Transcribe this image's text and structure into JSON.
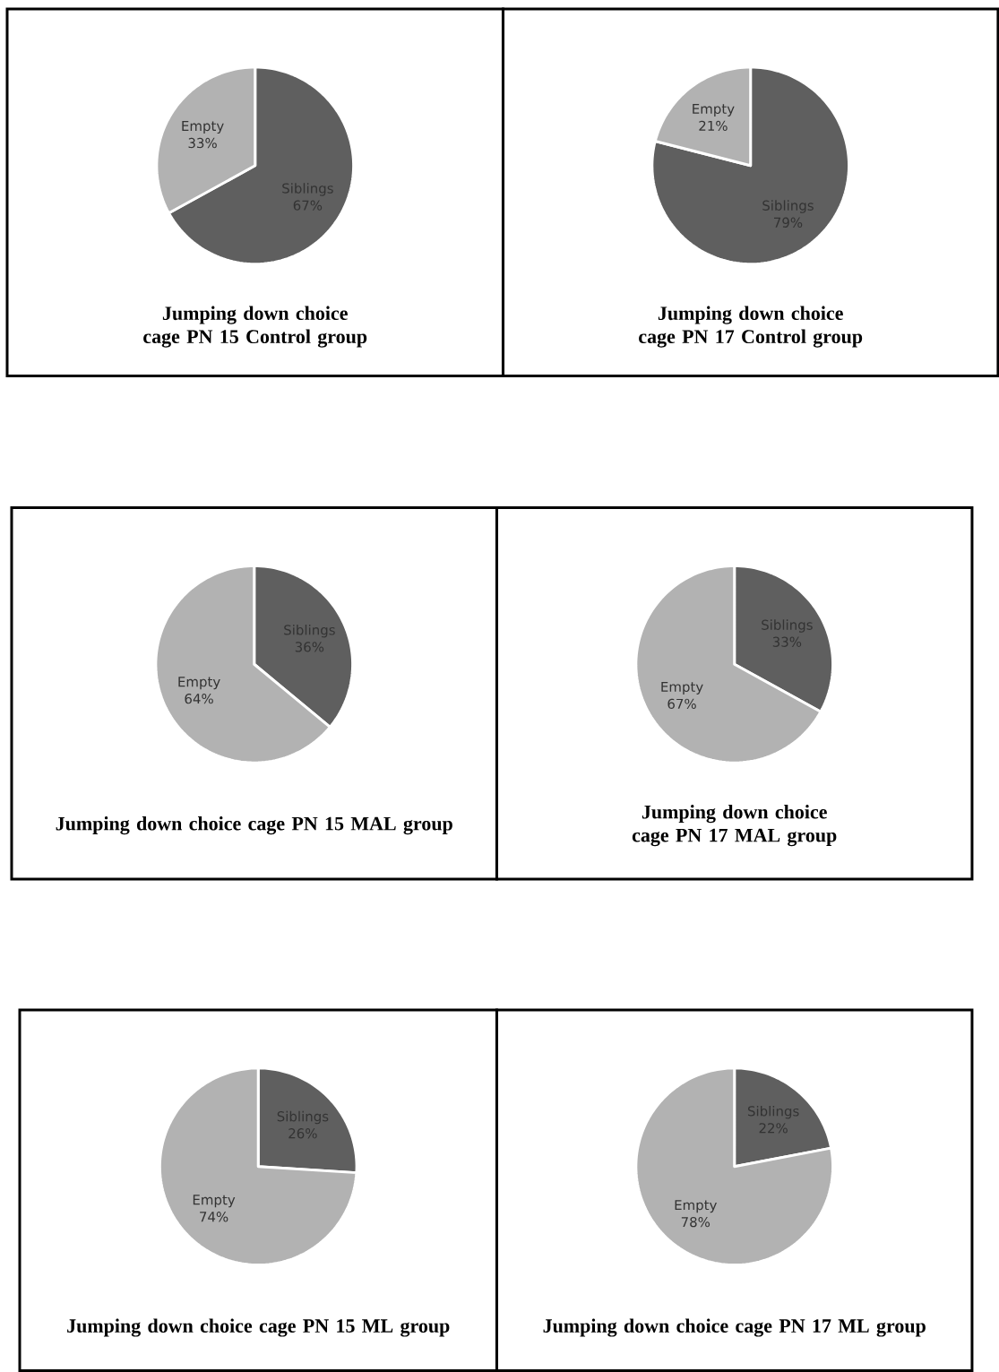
{
  "chart_data": [
    {
      "type": "pie",
      "title": "Jumping down choice cage PN 15 Control group",
      "categories": [
        "Siblings",
        "Empty"
      ],
      "values": [
        67,
        33
      ],
      "value_labels": [
        "67%",
        "33%"
      ],
      "colors": [
        "#5f5f5f",
        "#b2b2b2"
      ]
    },
    {
      "type": "pie",
      "title": "Jumping down choice cage PN 17 Control group",
      "categories": [
        "Siblings",
        "Empty"
      ],
      "values": [
        79,
        21
      ],
      "value_labels": [
        "79%",
        "21%"
      ],
      "colors": [
        "#5f5f5f",
        "#b2b2b2"
      ]
    },
    {
      "type": "pie",
      "title": "Jumping down choice cage PN 15 MAL group",
      "categories": [
        "Siblings",
        "Empty"
      ],
      "values": [
        36,
        64
      ],
      "value_labels": [
        "36%",
        "64%"
      ],
      "colors": [
        "#5f5f5f",
        "#b2b2b2"
      ]
    },
    {
      "type": "pie",
      "title": "Jumping down choice cage PN 17 MAL group",
      "categories": [
        "Siblings",
        "Empty"
      ],
      "values": [
        33,
        67
      ],
      "value_labels": [
        "33%",
        "67%"
      ],
      "colors": [
        "#5f5f5f",
        "#b2b2b2"
      ]
    },
    {
      "type": "pie",
      "title": "Jumping down choice cage PN 15 ML group",
      "categories": [
        "Siblings",
        "Empty"
      ],
      "values": [
        26,
        74
      ],
      "value_labels": [
        "26%",
        "74%"
      ],
      "colors": [
        "#5f5f5f",
        "#b2b2b2"
      ]
    },
    {
      "type": "pie",
      "title": "Jumping down choice cage PN 17 ML group",
      "categories": [
        "Siblings",
        "Empty"
      ],
      "values": [
        22,
        78
      ],
      "value_labels": [
        "22%",
        "78%"
      ],
      "colors": [
        "#5f5f5f",
        "#b2b2b2"
      ]
    }
  ]
}
